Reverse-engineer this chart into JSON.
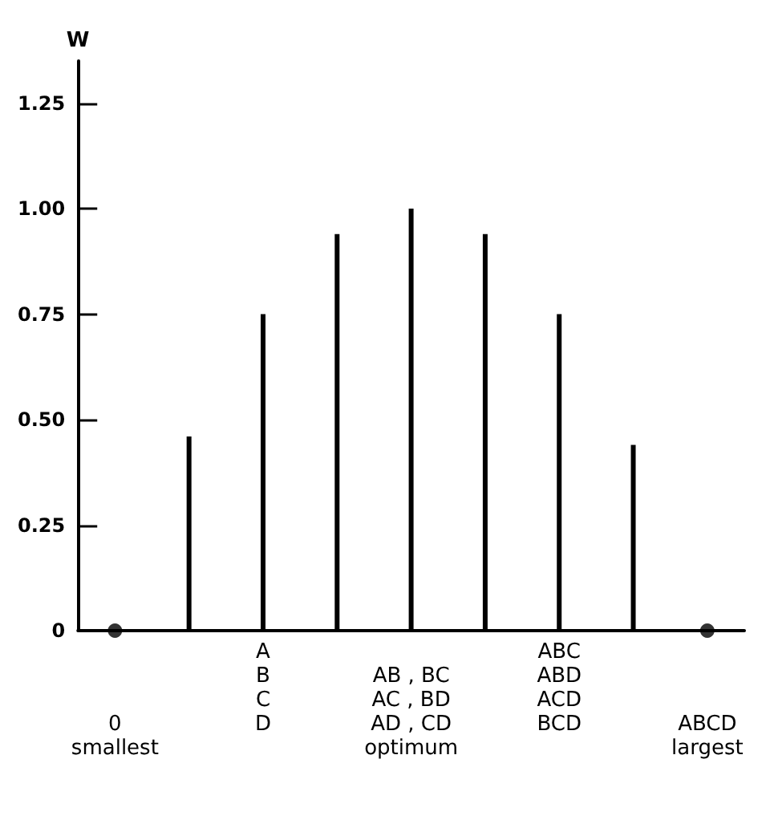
{
  "chart_data": {
    "type": "bar",
    "ylabel": "W",
    "categories": [
      "\n\n\n0\nsmallest",
      null,
      "A\nB\nC\nD",
      null,
      "\nAB , BC\nAC , BD\nAD , CD\noptimum",
      null,
      "ABC\nABD\nACD\nBCD",
      null,
      "\n\n\nABCD\nlargest"
    ],
    "series": [
      {
        "color": "#000000",
        "values": [
          null,
          0.46,
          0.75,
          0.94,
          1.0,
          0.94,
          0.75,
          0.44,
          null
        ]
      },
      {
        "type": "scatter",
        "color": "#000000",
        "marker": "circle",
        "values": [
          0,
          null,
          null,
          null,
          null,
          null,
          null,
          null,
          0
        ]
      }
    ],
    "ylim": [
      0,
      1.35
    ],
    "yticks": [
      0,
      {
        "value": 0.25,
        "label": "0.25"
      },
      {
        "value": 0.5,
        "label": "0.50"
      },
      {
        "value": 0.75,
        "label": "0.75"
      },
      {
        "value": 1,
        "label": "1.00"
      },
      {
        "value": 1.25,
        "label": "1.25"
      }
    ],
    "grid": false
  }
}
